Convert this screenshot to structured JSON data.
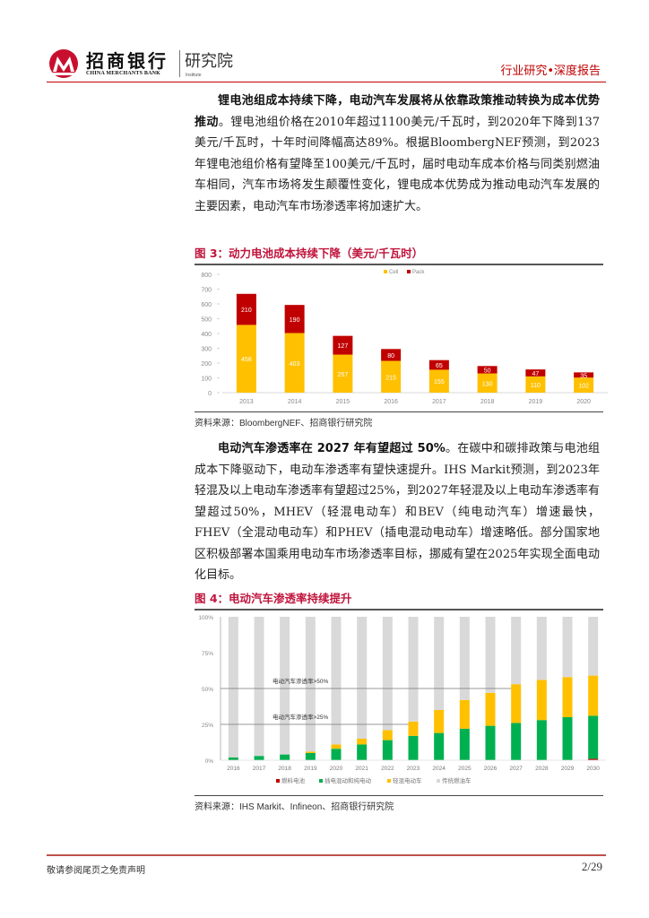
{
  "header": {
    "brand_cn": "招商银行",
    "brand_en": "CHINA MERCHANTS BANK",
    "institute_cn": "研究院",
    "institute_en": "Institute",
    "report_type": "行业研究•深度报告",
    "accent_color": "#c00000"
  },
  "paragraph1": {
    "bold_lead": "锂电池组成本持续下降，电动汽车发展将从依靠政策推动转换为成本优势推动",
    "body": "。锂电池组价格在2010年超过1100美元/千瓦时，到2020年下降到137美元/千瓦时，十年时间降幅高达89%。根据BloombergNEF预测，到2023年锂电池组价格有望降至100美元/千瓦时，届时电动车成本价格与同类别燃油车相同，汽车市场将发生颠覆性变化，锂电成本优势成为推动电动汽车发展的主要因素，电动汽车市场渗透率将加速扩大。"
  },
  "figure3": {
    "title": "图 3：动力电池成本持续下降（美元/千瓦时）",
    "source": "资料来源：BloombergNEF、招商银行研究院"
  },
  "paragraph2": {
    "bold_lead": "电动汽车渗透率在 2027 年有望超过 50%",
    "body": "。在碳中和碳排政策与电池组成本下降驱动下，电动车渗透率有望快速提升。IHS Markit预测，到2023年轻混及以上电动车渗透率有望超过25%，到2027年轻混及以上电动车渗透率有望超过50%，MHEV（轻混电动车）和BEV（纯电动汽车）增速最快，FHEV（全混动电动车）和PHEV（插电混动电动车）增速略低。部分国家地区积极部署本国乘用电动车市场渗透率目标，挪威有望在2025年实现全面电动化目标。"
  },
  "figure4": {
    "title": "图 4：电动汽车渗透率持续提升",
    "source": "资料来源：IHS Markit、Infineon、招商银行研究院"
  },
  "footer": {
    "disclaimer": "敬请参阅尾页之免责声明",
    "page": "2/29"
  },
  "chart_data": [
    {
      "type": "bar",
      "stacked": true,
      "title": "动力电池成本持续下降（美元/千瓦时）",
      "categories": [
        "2013",
        "2014",
        "2015",
        "2016",
        "2017",
        "2018",
        "2019",
        "2020"
      ],
      "series": [
        {
          "name": "Cell",
          "color": "#ffc000",
          "values": [
            458,
            403,
            257,
            215,
            155,
            130,
            110,
            102
          ]
        },
        {
          "name": "Pack",
          "color": "#c00000",
          "values": [
            210,
            190,
            127,
            80,
            65,
            50,
            47,
            35
          ]
        }
      ],
      "yticks": [
        0,
        100,
        200,
        300,
        400,
        500,
        600,
        700,
        800
      ],
      "ylim": [
        0,
        800
      ],
      "legend_position": "top-center",
      "grid": false
    },
    {
      "type": "bar",
      "stacked": true,
      "percent": true,
      "title": "电动汽车渗透率持续提升",
      "categories": [
        "2016",
        "2017",
        "2018",
        "2019",
        "2020",
        "2021",
        "2022",
        "2023",
        "2024",
        "2025",
        "2026",
        "2027",
        "2028",
        "2029",
        "2030"
      ],
      "series": [
        {
          "name": "燃料电池",
          "color": "#c00000",
          "values": [
            0,
            0,
            0,
            0,
            0,
            0,
            0,
            0,
            0,
            0,
            0,
            0,
            0,
            0,
            1
          ]
        },
        {
          "name": "插电混动和纯电动",
          "color": "#00b050",
          "values": [
            2,
            3,
            4,
            5,
            8,
            11,
            14,
            17,
            19,
            22,
            24,
            26,
            28,
            30,
            30
          ]
        },
        {
          "name": "轻混电动车",
          "color": "#ffc000",
          "values": [
            0,
            0,
            0,
            1,
            3,
            4,
            7,
            10,
            16,
            20,
            23,
            27,
            28,
            28,
            28
          ]
        },
        {
          "name": "传统燃油车",
          "color": "#d9d9d9",
          "values": [
            98,
            97,
            96,
            94,
            89,
            85,
            79,
            73,
            65,
            58,
            53,
            47,
            44,
            42,
            41
          ]
        }
      ],
      "yticks": [
        "0%",
        "25%",
        "50%",
        "75%",
        "100%"
      ],
      "ylim": [
        0,
        100
      ],
      "annotations": [
        {
          "text": "电动汽车渗透率>25%",
          "y": 25
        },
        {
          "text": "电动汽车渗透率>50%",
          "y": 50
        }
      ],
      "legend_position": "bottom-center",
      "grid": false
    }
  ]
}
